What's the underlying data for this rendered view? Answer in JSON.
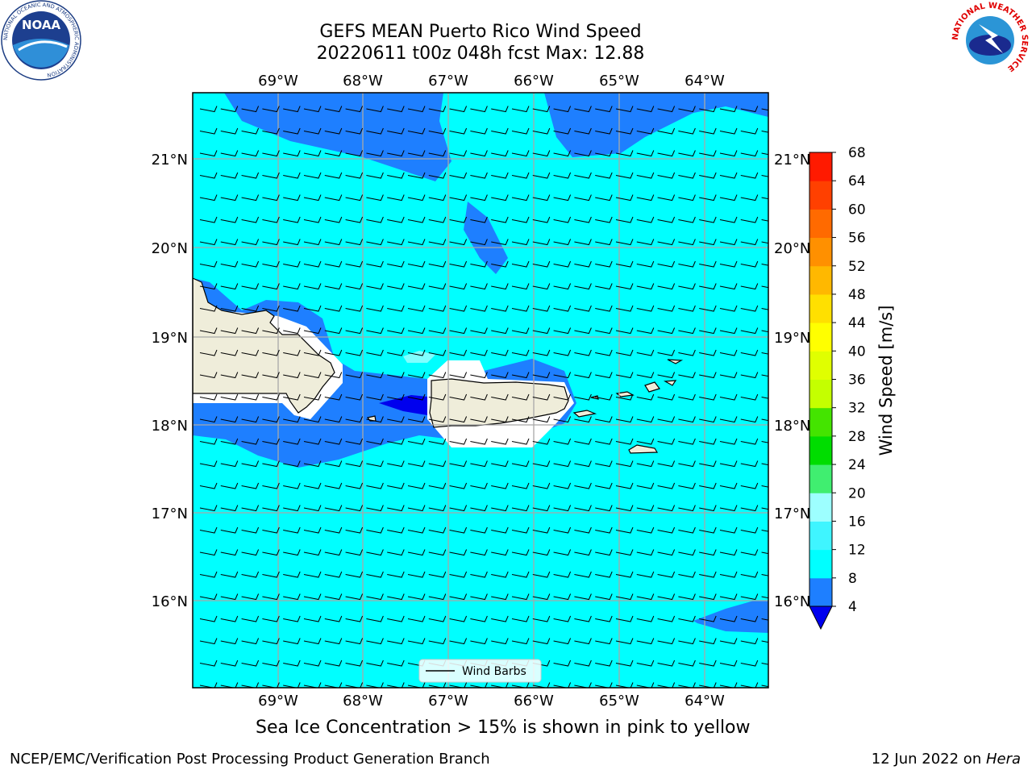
{
  "title": {
    "line1": "GEFS MEAN Puerto Rico Wind Speed",
    "line2": "20220611 t00z 048h fcst   Max: 12.88"
  },
  "axes": {
    "lon_ticks": [
      "69°W",
      "68°W",
      "67°W",
      "66°W",
      "65°W",
      "64°W"
    ],
    "lat_ticks": [
      "21°N",
      "20°N",
      "19°N",
      "18°N",
      "17°N",
      "16°N"
    ]
  },
  "legend": {
    "label": "Wind Barbs"
  },
  "colorbar": {
    "label": "Wind Speed [m/s]",
    "ticks": [
      "4",
      "8",
      "12",
      "16",
      "20",
      "24",
      "28",
      "32",
      "36",
      "40",
      "44",
      "48",
      "52",
      "56",
      "60",
      "64",
      "68"
    ],
    "colors": [
      "#1e7fff",
      "#00ffff",
      "#3ff5ff",
      "#9dffff",
      "#40ee70",
      "#00dd00",
      "#44e400",
      "#c4ff00",
      "#e0ff00",
      "#ffff00",
      "#ffe000",
      "#ffb800",
      "#ff9000",
      "#ff6a00",
      "#ff4000",
      "#ff1a00",
      "#ff0000"
    ],
    "extend_color": "#0000ee"
  },
  "subtitle": "Sea Ice Concentration > 15% is shown in pink to yellow",
  "footer": {
    "left": "NCEP/EMC/Verification Post Processing Product Generation Branch",
    "right_prefix": "12 Jun 2022 on ",
    "right_host": "Hera"
  },
  "logos": {
    "noaa_text": "NOAA",
    "noaa_ring": "NATIONAL OCEANIC AND ATMOSPHERIC ADMINISTRATION",
    "nws_ring": "NATIONAL WEATHER SERVICE"
  },
  "map_colors": {
    "light": "#00ffff",
    "medium": "#1e7fff",
    "dark": "#0000ee",
    "land": "#efedda"
  }
}
